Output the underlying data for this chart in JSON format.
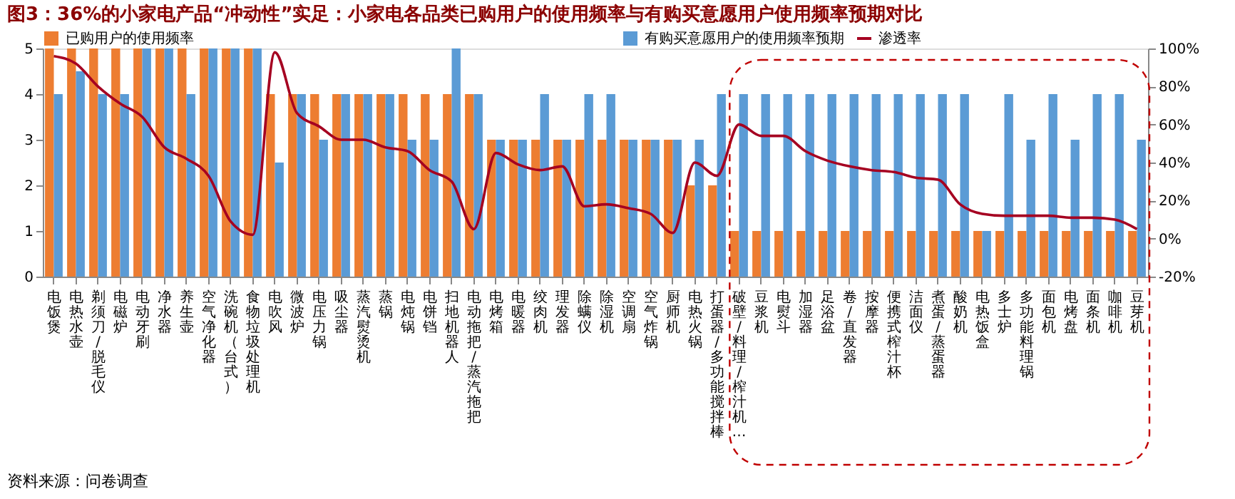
{
  "chart_data": {
    "type": "bar",
    "title": "图3：36%的小家电产品“冲动性”实足：小家电各品类已购用户的使用频率与有购买意愿用户使用频率预期对比",
    "categories": [
      "电饭煲",
      "电热水壶",
      "剃须刀/脱毛仪",
      "电磁炉",
      "电动牙刷",
      "净水器",
      "养生壶",
      "空气净化器",
      "洗碗机（台式）",
      "食物垃圾处理机",
      "电吹风",
      "微波炉",
      "电压力锅",
      "吸尘器",
      "蒸汽熨烫机",
      "蒸锅",
      "电炖锅",
      "电饼铛",
      "扫地机器人",
      "电动拖把/蒸汽拖把",
      "电烤箱",
      "电暖器",
      "绞肉机",
      "理发器",
      "除螨仪",
      "除湿机",
      "空调扇",
      "空气炸锅",
      "厨师机",
      "电热火锅",
      "打蛋器/多功能搅拌棒",
      "破壁/料理/榨汁机…",
      "豆浆机",
      "电熨斗",
      "加湿器",
      "足浴盆",
      "卷/直发器",
      "按摩器",
      "便携式榨汁杯",
      "洁面仪",
      "煮蛋/蒸蛋器",
      "酸奶机",
      "电热饭盒",
      "多士炉",
      "多功能料理锅",
      "面包机",
      "电烤盘",
      "面条机",
      "咖啡机",
      "豆芽机"
    ],
    "series": [
      {
        "name": "已购用户的使用频率",
        "color": "#ed7d31",
        "values": [
          5,
          5,
          5,
          5,
          5,
          5,
          5,
          5,
          5,
          5,
          4,
          4,
          4,
          4,
          4,
          4,
          4,
          4,
          4,
          4,
          3,
          3,
          3,
          3,
          3,
          3,
          3,
          3,
          3,
          2,
          2,
          1,
          1,
          1,
          1,
          1,
          1,
          1,
          1,
          1,
          1,
          1,
          1,
          1,
          1,
          1,
          1,
          1,
          1,
          1
        ]
      },
      {
        "name": "有购买意愿用户的使用频率预期",
        "color": "#5b9bd5",
        "values": [
          4,
          4.5,
          4,
          4,
          5,
          5,
          4,
          5,
          5,
          5,
          2.5,
          4,
          3,
          4,
          4,
          4,
          3,
          3,
          5,
          4,
          3,
          3,
          4,
          3,
          4,
          4,
          3,
          3,
          3,
          3,
          4,
          4,
          4,
          4,
          4,
          4,
          4,
          4,
          4,
          4,
          4,
          4,
          1,
          4,
          3,
          4,
          3,
          4,
          4,
          3
        ]
      },
      {
        "name": "渗透率",
        "type": "line",
        "axis": "y2",
        "color": "#a50021",
        "values": [
          96,
          92,
          80,
          71,
          64,
          48,
          42,
          33,
          9,
          2,
          98,
          66,
          59,
          52,
          52,
          48,
          46,
          36,
          30,
          5,
          45,
          39,
          36,
          38,
          17,
          18,
          16,
          13,
          3,
          40,
          33,
          60,
          54,
          54,
          46,
          41,
          38,
          36,
          35,
          32,
          31,
          18,
          13,
          12,
          12,
          12,
          11,
          11,
          10,
          5
        ]
      }
    ],
    "ylim": [
      0,
      5
    ],
    "yticks": [
      0,
      1,
      2,
      3,
      4,
      5
    ],
    "y2lim": [
      -20,
      100
    ],
    "y2ticks": [
      {
        "value": -20,
        "label": "-20%"
      },
      {
        "value": 0,
        "label": "0%"
      },
      {
        "value": 20,
        "label": "20%"
      },
      {
        "value": 40,
        "label": "40%"
      },
      {
        "value": 60,
        "label": "60%"
      },
      {
        "value": 80,
        "label": "80%"
      },
      {
        "value": 100,
        "label": "100%"
      }
    ],
    "annotations": [
      "资料来源：问卷调查"
    ],
    "legend": "top",
    "grid": false
  }
}
